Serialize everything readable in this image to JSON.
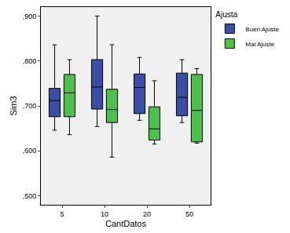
{
  "chart_data": {
    "type": "box",
    "x_label": "CantDatos",
    "y_label": "Sim3",
    "legend_title": "Ajusta",
    "legend": "upper right",
    "categories": [
      "5",
      "10",
      "20",
      "50"
    ],
    "ylim": [
      0.48,
      0.92
    ],
    "yticks": [
      {
        "value": 0.5,
        "label": ",500"
      },
      {
        "value": 0.6,
        "label": ",600"
      },
      {
        "value": 0.7,
        "label": ",700"
      },
      {
        "value": 0.8,
        "label": ",800"
      },
      {
        "value": 0.9,
        "label": ",900"
      }
    ],
    "grid": false,
    "series": [
      {
        "name": "Buen Ajuste",
        "color": "#3b4ea6",
        "lower": [
          0.646,
          0.654,
          0.668,
          0.663
        ],
        "q1": [
          0.676,
          0.693,
          0.683,
          0.678
        ],
        "median": [
          0.712,
          0.742,
          0.741,
          0.719
        ],
        "q3": [
          0.739,
          0.803,
          0.771,
          0.773
        ],
        "upper": [
          0.836,
          0.9,
          0.808,
          0.803
        ]
      },
      {
        "name": "Mal Ajuste",
        "color": "#4cbf4c",
        "lower": [
          0.636,
          0.586,
          0.615,
          0.617
        ],
        "q1": [
          0.676,
          0.663,
          0.624,
          0.62
        ],
        "median": [
          0.729,
          0.692,
          0.649,
          0.69
        ],
        "q3": [
          0.77,
          0.737,
          0.698,
          0.77
        ],
        "upper": [
          0.803,
          0.836,
          0.756,
          0.783
        ]
      }
    ]
  }
}
